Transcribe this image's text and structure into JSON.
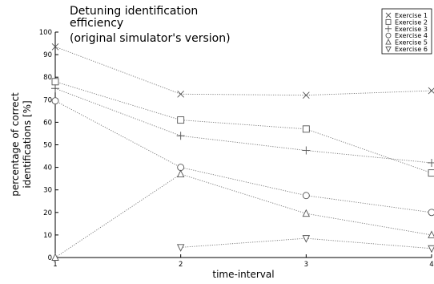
{
  "chart_data": {
    "type": "line",
    "title_lines": [
      "Detuning identification",
      "efficiency",
      "(original simulator's version)"
    ],
    "xlabel": "time-interval",
    "ylabel_lines": [
      "percentage of correct",
      "identifications [%]"
    ],
    "x": [
      1,
      2,
      3,
      4
    ],
    "xlim": [
      1,
      4
    ],
    "ylim": [
      0,
      100
    ],
    "xticks": [
      1,
      2,
      3,
      4
    ],
    "yticks": [
      0,
      10,
      20,
      30,
      40,
      50,
      60,
      70,
      80,
      90,
      100
    ],
    "grid": false,
    "legend_position": "top-right",
    "series": [
      {
        "name": "Exercise 1",
        "marker": "x",
        "points": [
          [
            1,
            93.5
          ],
          [
            2,
            72.5
          ],
          [
            3,
            72
          ],
          [
            4,
            74
          ]
        ]
      },
      {
        "name": "Exercise 2",
        "marker": "square",
        "points": [
          [
            1,
            78
          ],
          [
            2,
            61
          ],
          [
            3,
            57
          ],
          [
            4,
            37.5
          ]
        ]
      },
      {
        "name": "Exercise 3",
        "marker": "plus",
        "points": [
          [
            1,
            75
          ],
          [
            2,
            54
          ],
          [
            3,
            47.5
          ],
          [
            4,
            42
          ]
        ]
      },
      {
        "name": "Exercise 4",
        "marker": "circle",
        "points": [
          [
            1,
            69.5
          ],
          [
            2,
            40
          ],
          [
            3,
            27.5
          ],
          [
            4,
            20
          ]
        ]
      },
      {
        "name": "Exercise 5",
        "marker": "triangle-up",
        "points": [
          [
            1,
            0
          ],
          [
            2,
            37
          ],
          [
            3,
            19.5
          ],
          [
            4,
            10
          ]
        ]
      },
      {
        "name": "Exercise 6",
        "marker": "triangle-down",
        "points": [
          [
            2,
            4.5
          ],
          [
            3,
            8.5
          ],
          [
            4,
            4
          ]
        ]
      }
    ]
  }
}
